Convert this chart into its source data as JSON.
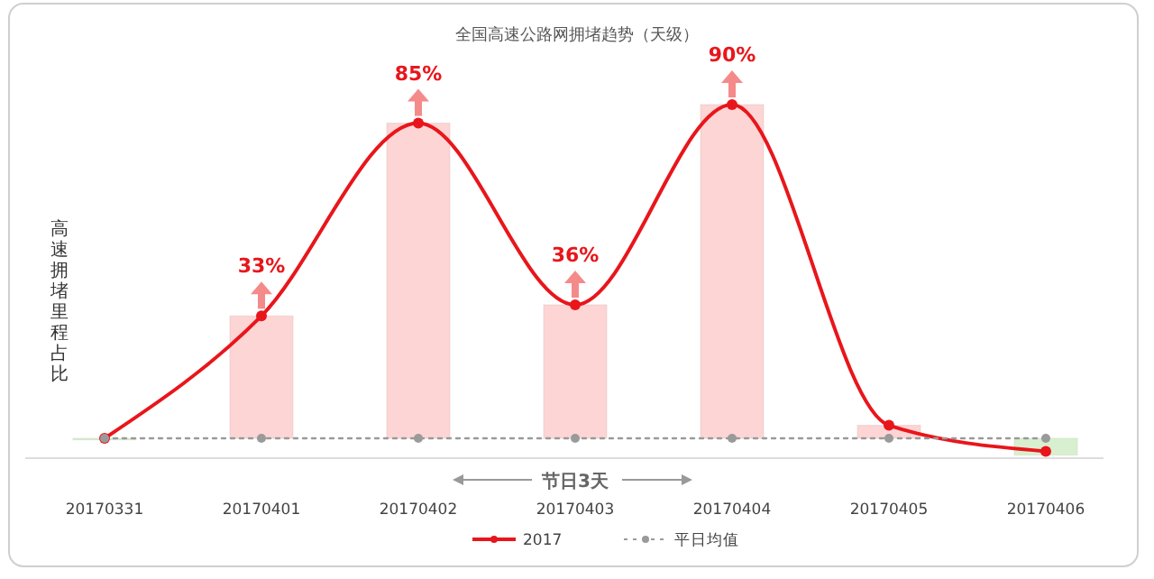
{
  "chart_data": {
    "type": "bar",
    "title": "全国高速公路网拥堵趋势（天级）",
    "ylabel": "高速拥堵里程占比",
    "categories": [
      "20170331",
      "20170401",
      "20170402",
      "20170403",
      "20170404",
      "20170405",
      "20170406"
    ],
    "series": [
      {
        "colors": [
          "#d9f0d0",
          "#fdd5d5",
          "#fdd5d5",
          "#fdd5d5",
          "#fdd5d5",
          "#fdd5d5",
          "#d9f0d0"
        ],
        "values": [
          -0.3,
          33,
          85,
          36,
          90,
          3.5,
          -4.5
        ]
      },
      {
        "type": "line",
        "name": "2017",
        "color": "#e8161b",
        "marker": "circle",
        "line_style": "solid",
        "values": [
          0,
          33,
          85,
          36,
          90,
          3.5,
          -3.5
        ],
        "value_labels": [
          null,
          "33%",
          "85%",
          "36%",
          "90%",
          null,
          null
        ]
      },
      {
        "type": "line",
        "name": "平日均值",
        "color": "#9a9a9a",
        "marker": "circle",
        "line_style": "dotted",
        "values": [
          0,
          0,
          0,
          0,
          0,
          0,
          0
        ]
      }
    ],
    "annotations": [
      "节日3天"
    ],
    "legend": "bottom",
    "grid": false
  }
}
